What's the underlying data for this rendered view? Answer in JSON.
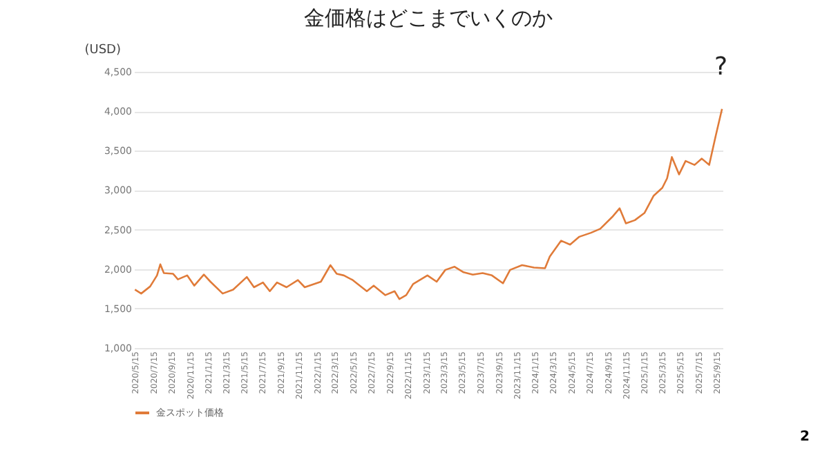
{
  "chart_data": {
    "type": "line",
    "title": "金価格はどこまでいくのか",
    "ylabel": "(USD)",
    "x": [
      "2020-05-15",
      "2020-06-05",
      "2020-07-05",
      "2020-07-28",
      "2020-08-08",
      "2020-08-20",
      "2020-09-20",
      "2020-10-06",
      "2020-11-06",
      "2020-11-30",
      "2021-01-01",
      "2021-01-23",
      "2021-03-05",
      "2021-04-09",
      "2021-05-25",
      "2021-06-18",
      "2021-07-18",
      "2021-08-10",
      "2021-09-03",
      "2021-10-05",
      "2021-11-12",
      "2021-12-05",
      "2022-01-28",
      "2022-03-01",
      "2022-03-22",
      "2022-04-15",
      "2022-05-15",
      "2022-07-01",
      "2022-07-24",
      "2022-09-01",
      "2022-10-02",
      "2022-10-18",
      "2022-11-10",
      "2022-12-03",
      "2023-01-20",
      "2023-02-20",
      "2023-03-21",
      "2023-04-21",
      "2023-05-21",
      "2023-06-21",
      "2023-07-24",
      "2023-08-24",
      "2023-09-30",
      "2023-10-24",
      "2023-12-03",
      "2024-01-12",
      "2024-02-18",
      "2024-03-05",
      "2024-04-12",
      "2024-05-12",
      "2024-06-12",
      "2024-07-21",
      "2024-08-21",
      "2024-09-30",
      "2024-10-25",
      "2024-11-15",
      "2024-12-15",
      "2025-01-16",
      "2025-02-16",
      "2025-03-17",
      "2025-04-02",
      "2025-04-18",
      "2025-05-12",
      "2025-06-03",
      "2025-07-03",
      "2025-07-27",
      "2025-08-21",
      "2025-09-12",
      "2025-10-03"
    ],
    "series": [
      {
        "name": "金スポット価格",
        "color": "#e07b39",
        "values": [
          1740,
          1690,
          1780,
          1920,
          2060,
          1950,
          1940,
          1870,
          1920,
          1790,
          1930,
          1840,
          1690,
          1740,
          1900,
          1770,
          1830,
          1720,
          1830,
          1770,
          1860,
          1770,
          1840,
          2050,
          1940,
          1920,
          1860,
          1720,
          1790,
          1670,
          1720,
          1620,
          1670,
          1810,
          1920,
          1840,
          1990,
          2030,
          1960,
          1930,
          1950,
          1920,
          1820,
          1990,
          2050,
          2020,
          2010,
          2160,
          2360,
          2310,
          2410,
          2460,
          2510,
          2660,
          2770,
          2580,
          2620,
          2710,
          2930,
          3030,
          3150,
          3420,
          3200,
          3370,
          3320,
          3400,
          3320,
          3690,
          4030
        ]
      }
    ],
    "xlim": [
      "2020-05-12",
      "2025-10-05"
    ],
    "xticks": [
      {
        "value": "2020-05-15",
        "label": "2020/5/15"
      },
      {
        "value": "2020-07-15",
        "label": "2020/7/15"
      },
      {
        "value": "2020-09-15",
        "label": "2020/9/15"
      },
      {
        "value": "2020-11-15",
        "label": "2020/11/15"
      },
      {
        "value": "2021-01-15",
        "label": "2021/1/15"
      },
      {
        "value": "2021-03-15",
        "label": "2021/3/15"
      },
      {
        "value": "2021-05-15",
        "label": "2021/5/15"
      },
      {
        "value": "2021-07-15",
        "label": "2021/7/15"
      },
      {
        "value": "2021-09-15",
        "label": "2021/9/15"
      },
      {
        "value": "2021-11-15",
        "label": "2021/11/15"
      },
      {
        "value": "2022-01-15",
        "label": "2022/1/15"
      },
      {
        "value": "2022-03-15",
        "label": "2022/3/15"
      },
      {
        "value": "2022-05-15",
        "label": "2022/5/15"
      },
      {
        "value": "2022-07-15",
        "label": "2022/7/15"
      },
      {
        "value": "2022-09-15",
        "label": "2022/9/15"
      },
      {
        "value": "2022-11-15",
        "label": "2022/11/15"
      },
      {
        "value": "2023-01-15",
        "label": "2023/1/15"
      },
      {
        "value": "2023-03-15",
        "label": "2023/3/15"
      },
      {
        "value": "2023-05-15",
        "label": "2023/5/15"
      },
      {
        "value": "2023-07-15",
        "label": "2023/7/15"
      },
      {
        "value": "2023-09-15",
        "label": "2023/9/15"
      },
      {
        "value": "2023-11-15",
        "label": "2023/11/15"
      },
      {
        "value": "2024-01-15",
        "label": "2024/1/15"
      },
      {
        "value": "2024-03-15",
        "label": "2024/3/15"
      },
      {
        "value": "2024-05-15",
        "label": "2024/5/15"
      },
      {
        "value": "2024-07-15",
        "label": "2024/7/15"
      },
      {
        "value": "2024-09-15",
        "label": "2024/9/15"
      },
      {
        "value": "2024-11-15",
        "label": "2024/11/15"
      },
      {
        "value": "2025-01-15",
        "label": "2025/1/15"
      },
      {
        "value": "2025-03-15",
        "label": "2025/3/15"
      },
      {
        "value": "2025-05-15",
        "label": "2025/5/15"
      },
      {
        "value": "2025-07-15",
        "label": "2025/7/15"
      },
      {
        "value": "2025-09-15",
        "label": "2025/9/15"
      }
    ],
    "ylim": [
      1000,
      4500
    ],
    "yticks": [
      {
        "value": 1000,
        "label": "1,000"
      },
      {
        "value": 1500,
        "label": "1,500"
      },
      {
        "value": 2000,
        "label": "2,000"
      },
      {
        "value": 2500,
        "label": "2,500"
      },
      {
        "value": 3000,
        "label": "3,000"
      },
      {
        "value": 3500,
        "label": "3,500"
      },
      {
        "value": 4000,
        "label": "4,000"
      },
      {
        "value": 4500,
        "label": "4,500"
      }
    ],
    "grid": "y",
    "legend": "bottom",
    "annotations": [
      "?",
      "2"
    ]
  }
}
